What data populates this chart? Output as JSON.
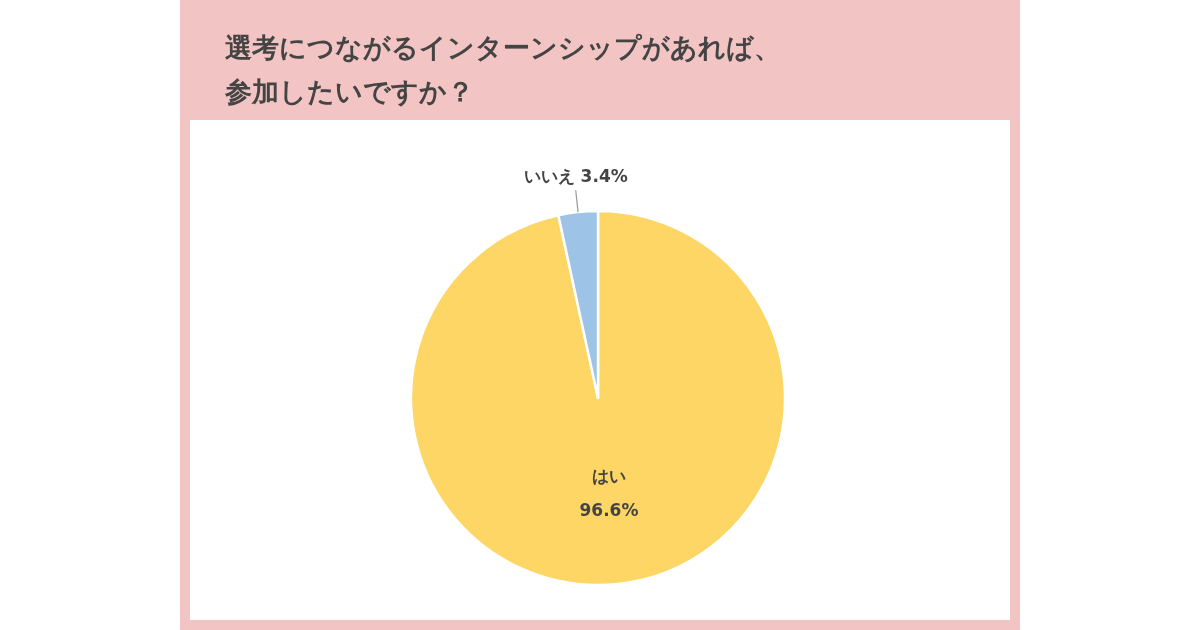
{
  "chart_data": {
    "type": "pie",
    "title": "選考につながるインターンシップがあれば、参加したいですか？",
    "categories": [
      "はい",
      "いいえ"
    ],
    "values": [
      96.6,
      3.4
    ],
    "colors": [
      "#fdd666",
      "#9dc3e6"
    ],
    "value_labels": [
      "96.6%",
      "3.4%"
    ]
  }
}
